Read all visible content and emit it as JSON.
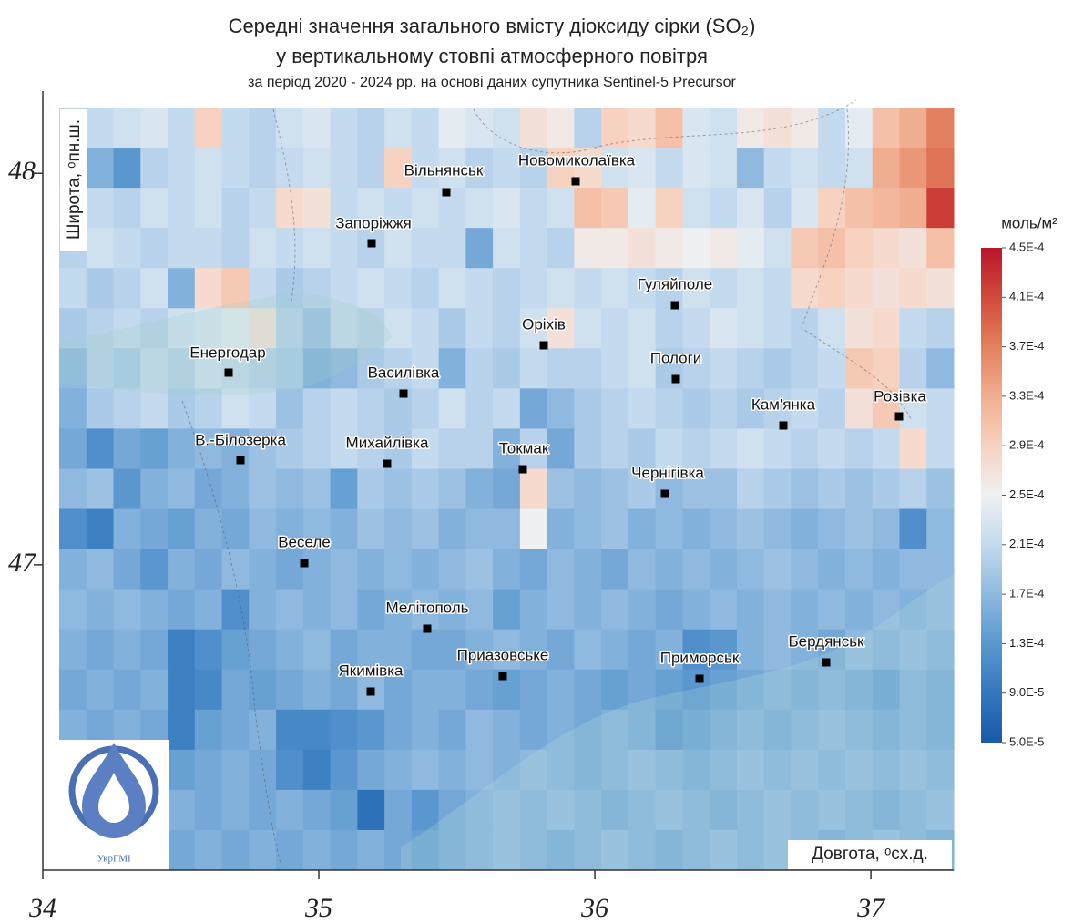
{
  "title": [
    "Середні значення загального вмісту діоксиду сірки (SO₂)",
    "у вертикальному стовпі атмосферного повітря"
  ],
  "subtitle": "за період 2020 - 2024 рр. на основі даних супутника Sentinel-5 Precursor",
  "axes": {
    "xlabel": "Довгота, ᵒсх.д.",
    "ylabel": "Широта, ᵒпн.ш.",
    "xlim": [
      34,
      37.3
    ],
    "ylim": [
      46.22,
      48.21
    ],
    "xticks": [
      34,
      35,
      36,
      37
    ],
    "yticks": [
      47,
      48
    ]
  },
  "colorbar": {
    "title": "моль/м²",
    "lim": [
      5e-05,
      0.00045
    ],
    "colors": [
      "#1a5aa8",
      "#3378bd",
      "#5a97cf",
      "#8fb9df",
      "#c4daee",
      "#eef0f2",
      "#f7d2c0",
      "#f0ae90",
      "#e3805f",
      "#d24a3b",
      "#b8162b"
    ],
    "ticks": [
      {
        "value": 5e-05,
        "label": "5.0E-5"
      },
      {
        "value": 9e-05,
        "label": "9.0E-5"
      },
      {
        "value": 0.00013,
        "label": "1.3E-4"
      },
      {
        "value": 0.00017,
        "label": "1.7E-4"
      },
      {
        "value": 0.00021,
        "label": "2.1E-4"
      },
      {
        "value": 0.00025,
        "label": "2.5E-4"
      },
      {
        "value": 0.00029,
        "label": "2.9E-4"
      },
      {
        "value": 0.00033,
        "label": "3.3E-4"
      },
      {
        "value": 0.00037,
        "label": "3.7E-4"
      },
      {
        "value": 0.00041,
        "label": "4.1E-4"
      },
      {
        "value": 0.00045,
        "label": "4.5E-4"
      }
    ]
  },
  "grid": [
    [
      0.0002,
      0.00021,
      0.00022,
      0.00023,
      0.00021,
      0.00029,
      0.00021,
      0.0002,
      0.00022,
      0.00023,
      0.00021,
      0.0002,
      0.00022,
      0.00021,
      0.00024,
      0.00023,
      0.00022,
      0.00027,
      0.00026,
      0.0002,
      0.00029,
      0.00028,
      0.00031,
      0.00023,
      0.00022,
      0.00026,
      0.00027,
      0.00026,
      0.00021,
      0.00024,
      0.00031,
      0.00033,
      0.00037
    ],
    [
      0.0002,
      0.00016,
      0.00013,
      0.0002,
      0.00021,
      0.00022,
      0.00021,
      0.0002,
      0.00021,
      0.00022,
      0.00021,
      0.0002,
      0.00029,
      0.00021,
      0.00022,
      0.0002,
      0.00021,
      0.0002,
      0.00029,
      0.00028,
      0.00022,
      0.00023,
      0.00021,
      0.00023,
      0.00022,
      0.00017,
      0.00021,
      0.00022,
      0.00021,
      0.00022,
      0.00033,
      0.00035,
      0.00038
    ],
    [
      0.00021,
      0.00021,
      0.0002,
      0.00022,
      0.00021,
      0.00022,
      0.0002,
      0.00021,
      0.00028,
      0.00027,
      0.00021,
      0.00022,
      0.00021,
      0.00022,
      0.00021,
      0.00022,
      0.00023,
      0.00021,
      0.00022,
      0.00031,
      0.0003,
      0.00024,
      0.00029,
      0.00022,
      0.00021,
      0.00023,
      0.0002,
      0.00023,
      0.00029,
      0.00031,
      0.00032,
      0.00033,
      0.00042
    ],
    [
      0.0002,
      0.00022,
      0.00021,
      0.0002,
      0.00021,
      0.00021,
      0.0002,
      0.00022,
      0.00021,
      0.00022,
      0.00021,
      0.0002,
      0.00022,
      0.00021,
      0.00021,
      0.00015,
      0.00022,
      0.00021,
      0.0002,
      0.00026,
      0.00026,
      0.00027,
      0.00026,
      0.00025,
      0.00026,
      0.00024,
      0.00022,
      0.0003,
      0.00031,
      0.00029,
      0.00028,
      0.00027,
      0.00031
    ],
    [
      0.00021,
      0.00019,
      0.0002,
      0.00022,
      0.00016,
      0.00028,
      0.0003,
      0.00021,
      0.00019,
      0.0002,
      0.00021,
      0.00022,
      0.00021,
      0.0002,
      0.00022,
      0.00021,
      0.0002,
      0.00021,
      0.00022,
      0.00021,
      0.00022,
      0.00021,
      0.0002,
      0.00022,
      0.00021,
      0.00022,
      0.00021,
      0.00028,
      0.00029,
      0.00028,
      0.00027,
      0.00028,
      0.00027
    ],
    [
      0.00019,
      0.0002,
      0.00021,
      0.0002,
      0.00022,
      0.00023,
      0.00024,
      0.00027,
      0.0002,
      0.00018,
      0.00021,
      0.0002,
      0.00022,
      0.00021,
      0.00019,
      0.00021,
      0.0002,
      0.00022,
      0.00027,
      0.00022,
      0.00021,
      0.00022,
      0.0002,
      0.00021,
      0.00023,
      0.00022,
      0.00021,
      0.0002,
      0.00022,
      0.00027,
      0.00028,
      0.00021,
      0.0002
    ],
    [
      0.00017,
      0.0002,
      0.00019,
      0.00021,
      0.0002,
      0.00022,
      0.00021,
      0.0002,
      0.00019,
      0.00016,
      0.00017,
      0.00019,
      0.0002,
      0.00021,
      0.00016,
      0.0002,
      0.00019,
      0.00021,
      0.0002,
      0.0002,
      0.00021,
      0.00022,
      0.00019,
      0.0002,
      0.00021,
      0.0002,
      0.00019,
      0.0002,
      0.00021,
      0.0003,
      0.00029,
      0.0002,
      0.00017
    ],
    [
      0.00016,
      0.00019,
      0.0002,
      0.00021,
      0.00019,
      0.0002,
      0.00022,
      0.00021,
      0.00018,
      0.0002,
      0.00021,
      0.0002,
      0.00019,
      0.0002,
      0.00022,
      0.0002,
      0.00021,
      0.00015,
      0.00017,
      0.00019,
      0.0002,
      0.00021,
      0.0002,
      0.00019,
      0.0002,
      0.00019,
      0.0002,
      0.00021,
      0.0002,
      0.00027,
      0.0003,
      0.00022,
      0.00021
    ],
    [
      0.00015,
      0.00012,
      0.00015,
      0.00014,
      0.00016,
      0.00017,
      0.00016,
      0.00018,
      0.00019,
      0.0002,
      0.00021,
      0.0002,
      0.00019,
      0.00021,
      0.0002,
      0.0002,
      0.00016,
      0.0002,
      0.00015,
      0.00019,
      0.0002,
      0.00019,
      0.00021,
      0.0002,
      0.00021,
      0.00022,
      0.00021,
      0.0002,
      0.00021,
      0.0002,
      0.00021,
      0.00028,
      0.00021
    ],
    [
      0.00017,
      0.00018,
      0.00013,
      0.00016,
      0.00017,
      0.00015,
      0.00016,
      0.00018,
      0.00017,
      0.00018,
      0.00014,
      0.00019,
      0.00018,
      0.00019,
      0.00018,
      0.00016,
      0.00015,
      0.00028,
      0.00018,
      0.00017,
      0.00018,
      0.00019,
      0.00017,
      0.00018,
      0.00018,
      0.0002,
      0.00019,
      0.00018,
      0.00019,
      0.00018,
      0.00019,
      0.0002,
      0.00018
    ],
    [
      0.00012,
      0.0001,
      0.00016,
      0.00015,
      0.00014,
      0.00016,
      0.00015,
      0.00017,
      0.00016,
      0.00017,
      0.00016,
      0.00018,
      0.00017,
      0.00018,
      0.00016,
      0.00017,
      0.00017,
      0.00025,
      0.00016,
      0.00017,
      0.00018,
      0.00016,
      0.00017,
      0.00016,
      0.00017,
      0.00018,
      0.00017,
      0.00016,
      0.00017,
      0.00018,
      0.00017,
      0.00012,
      0.00017
    ],
    [
      0.00016,
      0.00017,
      0.00015,
      0.00013,
      0.00016,
      0.00015,
      0.00017,
      0.00016,
      0.00015,
      0.00016,
      0.00017,
      0.00016,
      0.00017,
      0.00016,
      0.00017,
      0.00018,
      0.00016,
      0.00015,
      0.00017,
      0.00016,
      0.00015,
      0.00017,
      0.00016,
      0.00017,
      0.00016,
      0.00017,
      0.00018,
      0.00017,
      0.00016,
      0.00017,
      0.00016,
      0.00017,
      0.00017
    ],
    [
      0.00017,
      0.00016,
      0.00017,
      0.00016,
      0.00015,
      0.00016,
      0.00012,
      0.00016,
      0.00017,
      0.00016,
      0.00017,
      0.00015,
      0.00016,
      0.00017,
      0.00016,
      0.00017,
      0.00014,
      0.00016,
      0.00017,
      0.00016,
      0.00017,
      0.00016,
      0.00015,
      0.00016,
      0.00017,
      0.00016,
      0.00017,
      0.00016,
      0.00017,
      0.00016,
      0.00017,
      0.00016,
      0.00017
    ],
    [
      0.00016,
      0.00015,
      0.00016,
      0.00015,
      0.0001,
      0.00012,
      0.00014,
      0.00015,
      0.00016,
      0.00017,
      0.00015,
      0.00016,
      0.00016,
      0.00015,
      0.00015,
      0.00016,
      0.00017,
      0.00016,
      0.00015,
      0.00017,
      0.00016,
      0.00015,
      0.00016,
      0.00012,
      0.00013,
      0.00016,
      0.00017,
      0.00016,
      0.00015,
      0.00017,
      0.00016,
      0.00017,
      0.00016
    ],
    [
      0.00015,
      0.00016,
      0.00015,
      0.00016,
      0.0001,
      0.00011,
      0.00015,
      0.00014,
      0.00015,
      0.00016,
      0.00015,
      0.00017,
      0.00015,
      0.00016,
      0.00016,
      0.00015,
      0.00014,
      0.00015,
      0.00016,
      0.00015,
      0.00014,
      0.00015,
      0.00014,
      0.00013,
      0.00014,
      0.00015,
      0.00016,
      0.00015,
      0.00016,
      0.00015,
      0.00014,
      0.00016,
      0.00015
    ],
    [
      0.00016,
      0.00015,
      0.00016,
      0.00015,
      0.0001,
      0.00014,
      0.00015,
      0.00016,
      0.00011,
      0.00011,
      0.00012,
      0.00013,
      0.00015,
      0.00016,
      0.00015,
      0.00017,
      0.00016,
      0.00015,
      0.00016,
      0.00015,
      0.00016,
      0.00015,
      0.00013,
      0.00014,
      0.00015,
      0.00016,
      0.00015,
      0.00016,
      0.00017,
      0.00016,
      0.00015,
      0.00016,
      0.00015
    ],
    [
      0.00017,
      0.00016,
      0.00015,
      0.00016,
      0.00014,
      0.00015,
      0.00016,
      0.00015,
      0.00012,
      0.0001,
      0.00013,
      0.00015,
      0.00016,
      0.00017,
      0.00016,
      0.00017,
      0.00016,
      0.00017,
      0.00016,
      0.00015,
      0.00016,
      0.00017,
      0.00016,
      0.00015,
      0.00016,
      0.00017,
      0.00016,
      0.00017,
      0.00016,
      0.00017,
      0.00016,
      0.00017,
      0.00016
    ],
    [
      0.00016,
      0.00017,
      0.00016,
      0.00015,
      0.00016,
      0.00015,
      0.00016,
      0.00015,
      0.00016,
      0.00015,
      0.00014,
      8e-05,
      0.00015,
      0.00013,
      0.00015,
      0.00016,
      0.00017,
      0.00016,
      0.00017,
      0.00016,
      0.00015,
      0.00016,
      0.00017,
      0.00016,
      0.00015,
      0.00016,
      0.00017,
      0.00016,
      0.00017,
      0.00016,
      0.00015,
      0.00016,
      0.00017
    ],
    [
      0.00015,
      0.00016,
      0.00017,
      0.00016,
      0.00015,
      0.00016,
      0.00015,
      0.00016,
      0.00015,
      0.00016,
      0.00015,
      0.00016,
      0.00015,
      0.00014,
      0.00015,
      0.00016,
      0.00017,
      0.00016,
      0.00015,
      0.00016,
      0.00017,
      0.00016,
      0.00015,
      0.00016,
      0.00017,
      0.00016,
      0.00017,
      0.00016,
      0.00015,
      0.00016,
      0.00017,
      0.00016,
      0.00015
    ]
  ],
  "cities": [
    {
      "label": "Вільнянськ"
    },
    {
      "label": "Новомиколаївка"
    },
    {
      "label": "Запоріжжя"
    },
    {
      "label": "Гуляйполе"
    },
    {
      "label": "Оріхів"
    },
    {
      "label": "Енергодар"
    },
    {
      "label": "Пологи"
    },
    {
      "label": "Василівка"
    },
    {
      "label": "Кам'янка"
    },
    {
      "label": "Розівка"
    },
    {
      "label": "В.-Білозерка"
    },
    {
      "label": "Михайлівка"
    },
    {
      "label": "Токмак"
    },
    {
      "label": "Чернігівка"
    },
    {
      "label": "Веселе"
    },
    {
      "label": "Мелітополь"
    },
    {
      "label": "Приазовське"
    },
    {
      "label": "Приморськ"
    },
    {
      "label": "Бердянськ"
    },
    {
      "label": "Якимівка"
    }
  ],
  "logo": "УкрГМІ"
}
